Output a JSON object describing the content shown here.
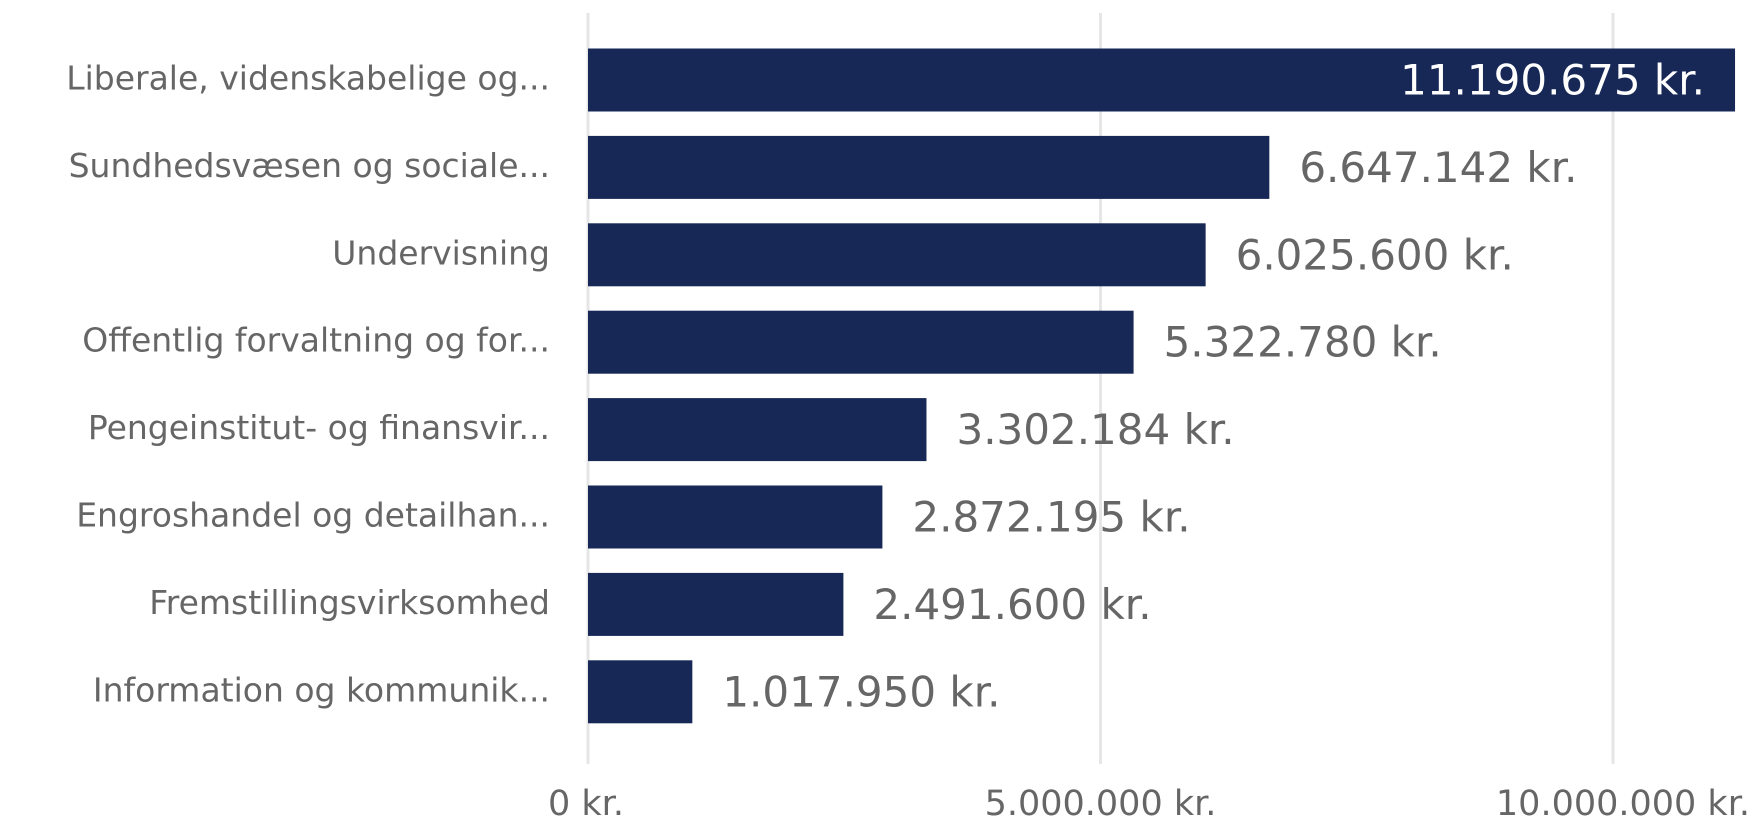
{
  "chart_data": {
    "type": "hbar",
    "categories": [
      "Liberale, videnskabelige og...",
      "Sundhedsvæsen og sociale...",
      "Undervisning",
      "Offentlig forvaltning og for...",
      "Pengeinstitut- og finansvir...",
      "Engroshandel og detailhan...",
      "Fremstillingsvirksomhed",
      "Information og kommunik..."
    ],
    "values": [
      11190675,
      6647142,
      6025600,
      5322780,
      3302184,
      2872195,
      2491600,
      1017950
    ],
    "value_labels": [
      "11.190.675 kr.",
      "6.647.142 kr.",
      "6.025.600 kr.",
      "5.322.780 kr.",
      "3.302.184 kr.",
      "2.872.195 kr.",
      "2.491.600 kr.",
      "1.017.950 kr."
    ],
    "color": "#172856",
    "xlim": [
      0,
      11200000
    ],
    "xticks": [
      {
        "value": 0,
        "label": "0 kr."
      },
      {
        "value": 5000000,
        "label": "5.000.000 kr."
      },
      {
        "value": 10000000,
        "label": "10.000.000 kr."
      }
    ],
    "grid": true
  }
}
